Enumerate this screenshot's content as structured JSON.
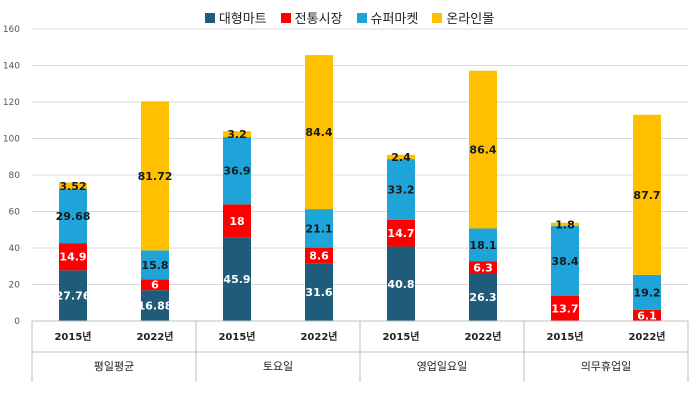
{
  "chart_data": {
    "type": "bar",
    "stacked": true,
    "title": "",
    "ylim": [
      0,
      160
    ],
    "yticks": [
      0,
      20,
      40,
      60,
      80,
      100,
      120,
      140,
      160
    ],
    "yticklabels": [
      "0",
      "20",
      "40",
      "60",
      "80",
      "100",
      "120",
      "140",
      "160"
    ],
    "legend_position": "top-center",
    "grid": true,
    "groups": [
      "평일평균",
      "토요일",
      "영업일요일",
      "의무휴업일"
    ],
    "categories": [
      "2015년",
      "2022년",
      "2015년",
      "2022년",
      "2015년",
      "2022년",
      "2015년",
      "2022년"
    ],
    "series": [
      {
        "name": "대형마트",
        "color": "#1f5c7a",
        "values": [
          27.76,
          16.88,
          45.9,
          31.6,
          40.8,
          26.3,
          0,
          0
        ],
        "labels": [
          "27.76",
          "16.88",
          "45.9",
          "31.6",
          "40.8",
          "26.3",
          "",
          ""
        ],
        "label_color": "#ffffff"
      },
      {
        "name": "전통시장",
        "color": "#ff0000",
        "values": [
          14.9,
          6,
          18,
          8.6,
          14.7,
          6.3,
          13.7,
          6.1
        ],
        "labels": [
          "14.9",
          "6",
          "18",
          "8.6",
          "14.7",
          "6.3",
          "13.7",
          "6.1"
        ],
        "label_color": "#ffffff"
      },
      {
        "name": "슈퍼마켓",
        "color": "#1ea4d9",
        "values": [
          29.68,
          15.8,
          36.9,
          21.1,
          33.2,
          18.1,
          38.4,
          19.2
        ],
        "labels": [
          "29.68",
          "15.8",
          "36.9",
          "21.1",
          "33.2",
          "18.1",
          "38.4",
          "19.2"
        ],
        "label_color": "#1a1a1a"
      },
      {
        "name": "온라인몰",
        "color": "#ffc000",
        "values": [
          3.52,
          81.72,
          3.2,
          84.4,
          2.4,
          86.4,
          1.8,
          87.7
        ],
        "labels": [
          "3.52",
          "81.72",
          "3.2",
          "84.4",
          "2.4",
          "86.4",
          "1.8",
          "87.7"
        ],
        "label_color": "#1a1a1a"
      }
    ]
  }
}
